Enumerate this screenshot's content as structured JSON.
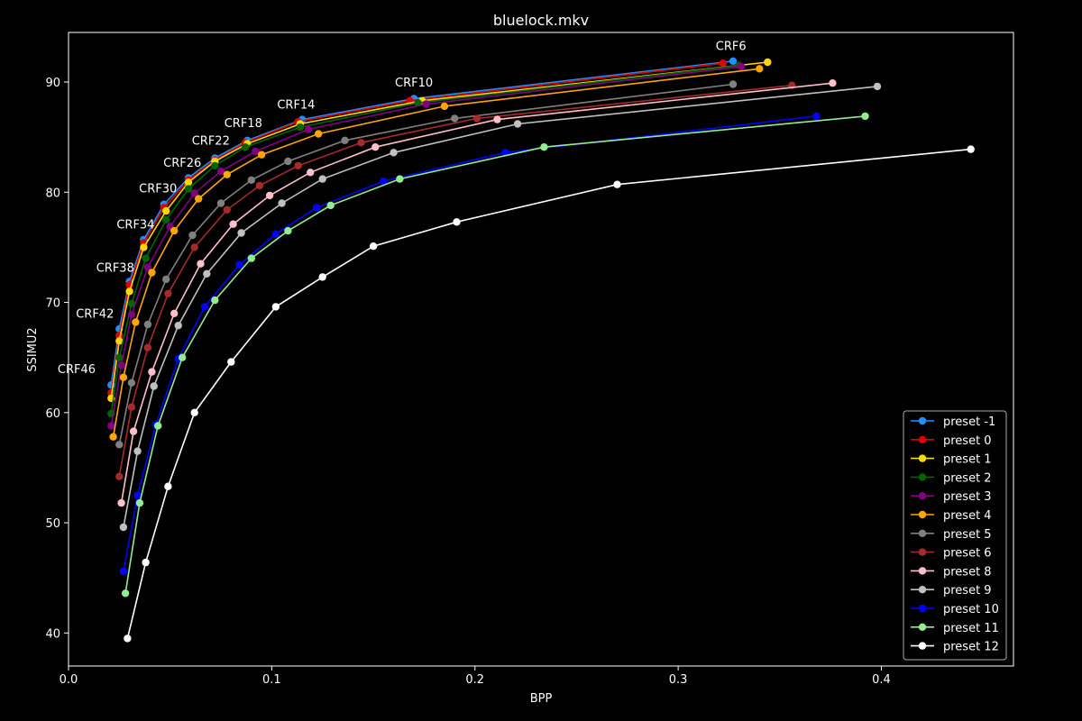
{
  "chart_data": {
    "type": "line",
    "title": "bluelock.mkv",
    "xlabel": "BPP",
    "ylabel": "SSIMU2",
    "xlim": [
      0.0,
      0.465
    ],
    "ylim": [
      37,
      94.5
    ],
    "xticks": [
      0.0,
      0.1,
      0.2,
      0.3,
      0.4
    ],
    "xtick_labels": [
      "0.0",
      "0.1",
      "0.2",
      "0.3",
      "0.4"
    ],
    "yticks": [
      40,
      50,
      60,
      70,
      80,
      90
    ],
    "ytick_labels": [
      "40",
      "50",
      "60",
      "70",
      "80",
      "90"
    ],
    "grid": false,
    "legend_position": "lower-right",
    "crf_labels": [
      {
        "text": "CRF6",
        "x": 0.326,
        "y": 92.9
      },
      {
        "text": "CRF10",
        "x": 0.17,
        "y": 89.6
      },
      {
        "text": "CRF14",
        "x": 0.112,
        "y": 87.6
      },
      {
        "text": "CRF18",
        "x": 0.086,
        "y": 85.9
      },
      {
        "text": "CRF22",
        "x": 0.07,
        "y": 84.3
      },
      {
        "text": "CRF26",
        "x": 0.056,
        "y": 82.3
      },
      {
        "text": "CRF30",
        "x": 0.044,
        "y": 80.0
      },
      {
        "text": "CRF34",
        "x": 0.033,
        "y": 76.7
      },
      {
        "text": "CRF38",
        "x": 0.023,
        "y": 72.8
      },
      {
        "text": "CRF42",
        "x": 0.013,
        "y": 68.6
      },
      {
        "text": "CRF46",
        "x": 0.004,
        "y": 63.6
      }
    ],
    "series": [
      {
        "name": "preset -1",
        "color": "#1f8fff",
        "x": [
          0.021,
          0.025,
          0.03,
          0.037,
          0.047,
          0.059,
          0.072,
          0.088,
          0.115,
          0.17,
          0.327
        ],
        "y": [
          62.5,
          67.6,
          71.9,
          75.7,
          78.9,
          81.3,
          83.1,
          84.7,
          86.6,
          88.5,
          91.9
        ]
      },
      {
        "name": "preset 0",
        "color": "#e00000",
        "x": [
          0.021,
          0.025,
          0.03,
          0.037,
          0.047,
          0.059,
          0.072,
          0.087,
          0.113,
          0.168,
          0.322
        ],
        "y": [
          61.8,
          67.0,
          71.6,
          75.4,
          78.6,
          81.1,
          82.9,
          84.5,
          86.4,
          88.3,
          91.7
        ]
      },
      {
        "name": "preset 1",
        "color": "#ffd700",
        "x": [
          0.021,
          0.025,
          0.03,
          0.037,
          0.048,
          0.059,
          0.072,
          0.088,
          0.114,
          0.174,
          0.344
        ],
        "y": [
          61.3,
          66.5,
          71.0,
          75.0,
          78.3,
          80.9,
          82.8,
          84.4,
          86.2,
          88.3,
          91.8
        ]
      },
      {
        "name": "preset 2",
        "color": "#006400",
        "x": [
          0.021,
          0.025,
          0.031,
          0.038,
          0.048,
          0.059,
          0.072,
          0.087,
          0.114,
          0.172,
          0.33
        ],
        "y": [
          59.9,
          65.0,
          69.9,
          74.0,
          77.5,
          80.3,
          82.4,
          84.1,
          85.9,
          88.1,
          91.5
        ]
      },
      {
        "name": "preset 3",
        "color": "#800080",
        "x": [
          0.021,
          0.026,
          0.031,
          0.039,
          0.05,
          0.062,
          0.075,
          0.092,
          0.118,
          0.176,
          0.331
        ],
        "y": [
          58.8,
          64.3,
          68.9,
          73.2,
          76.9,
          79.9,
          81.9,
          83.7,
          85.7,
          88.0,
          91.4
        ]
      },
      {
        "name": "preset 4",
        "color": "#ffa500",
        "x": [
          0.022,
          0.027,
          0.033,
          0.041,
          0.052,
          0.064,
          0.078,
          0.095,
          0.123,
          0.185,
          0.34
        ],
        "y": [
          57.8,
          63.2,
          68.2,
          72.7,
          76.5,
          79.4,
          81.6,
          83.4,
          85.3,
          87.8,
          91.2
        ]
      },
      {
        "name": "preset 5",
        "color": "#808080",
        "x": [
          0.025,
          0.031,
          0.039,
          0.048,
          0.061,
          0.075,
          0.09,
          0.108,
          0.136,
          0.19,
          0.327
        ],
        "y": [
          57.1,
          62.7,
          68.0,
          72.1,
          76.1,
          79.0,
          81.1,
          82.8,
          84.7,
          86.7,
          89.8
        ]
      },
      {
        "name": "preset 6",
        "color": "#a52a2a",
        "x": [
          0.025,
          0.031,
          0.039,
          0.049,
          0.062,
          0.078,
          0.094,
          0.113,
          0.144,
          0.201,
          0.356
        ],
        "y": [
          54.2,
          60.5,
          65.9,
          70.8,
          75.0,
          78.4,
          80.6,
          82.4,
          84.5,
          86.7,
          89.7
        ]
      },
      {
        "name": "preset 8",
        "color": "#ffc0cb",
        "x": [
          0.026,
          0.032,
          0.041,
          0.052,
          0.065,
          0.081,
          0.099,
          0.119,
          0.151,
          0.211,
          0.376
        ],
        "y": [
          51.8,
          58.3,
          63.7,
          69.0,
          73.5,
          77.1,
          79.7,
          81.8,
          84.1,
          86.6,
          89.9
        ]
      },
      {
        "name": "preset 9",
        "color": "#c0c0c0",
        "x": [
          0.027,
          0.034,
          0.042,
          0.054,
          0.068,
          0.085,
          0.105,
          0.125,
          0.16,
          0.221,
          0.398
        ],
        "y": [
          49.6,
          56.5,
          62.4,
          67.9,
          72.6,
          76.3,
          79.0,
          81.2,
          83.6,
          86.2,
          89.6
        ]
      },
      {
        "name": "preset 10",
        "color": "#0000ff",
        "x": [
          0.027,
          0.034,
          0.043,
          0.054,
          0.067,
          0.084,
          0.102,
          0.122,
          0.155,
          0.215,
          0.368
        ],
        "y": [
          45.6,
          52.5,
          58.9,
          64.9,
          69.6,
          73.4,
          76.2,
          78.6,
          81.0,
          83.6,
          86.9
        ]
      },
      {
        "name": "preset 11",
        "color": "#90ee90",
        "x": [
          0.028,
          0.035,
          0.044,
          0.056,
          0.072,
          0.09,
          0.108,
          0.129,
          0.163,
          0.234,
          0.392
        ],
        "y": [
          43.6,
          51.8,
          58.8,
          65.0,
          70.2,
          74.0,
          76.5,
          78.8,
          81.2,
          84.1,
          86.9
        ]
      },
      {
        "name": "preset 12",
        "color": "#ffffff",
        "x": [
          0.029,
          0.038,
          0.049,
          0.062,
          0.08,
          0.102,
          0.125,
          0.15,
          0.191,
          0.27,
          0.444
        ],
        "y": [
          39.5,
          46.4,
          53.3,
          60.0,
          64.6,
          69.6,
          72.3,
          75.1,
          77.3,
          80.7,
          83.9
        ]
      }
    ]
  }
}
